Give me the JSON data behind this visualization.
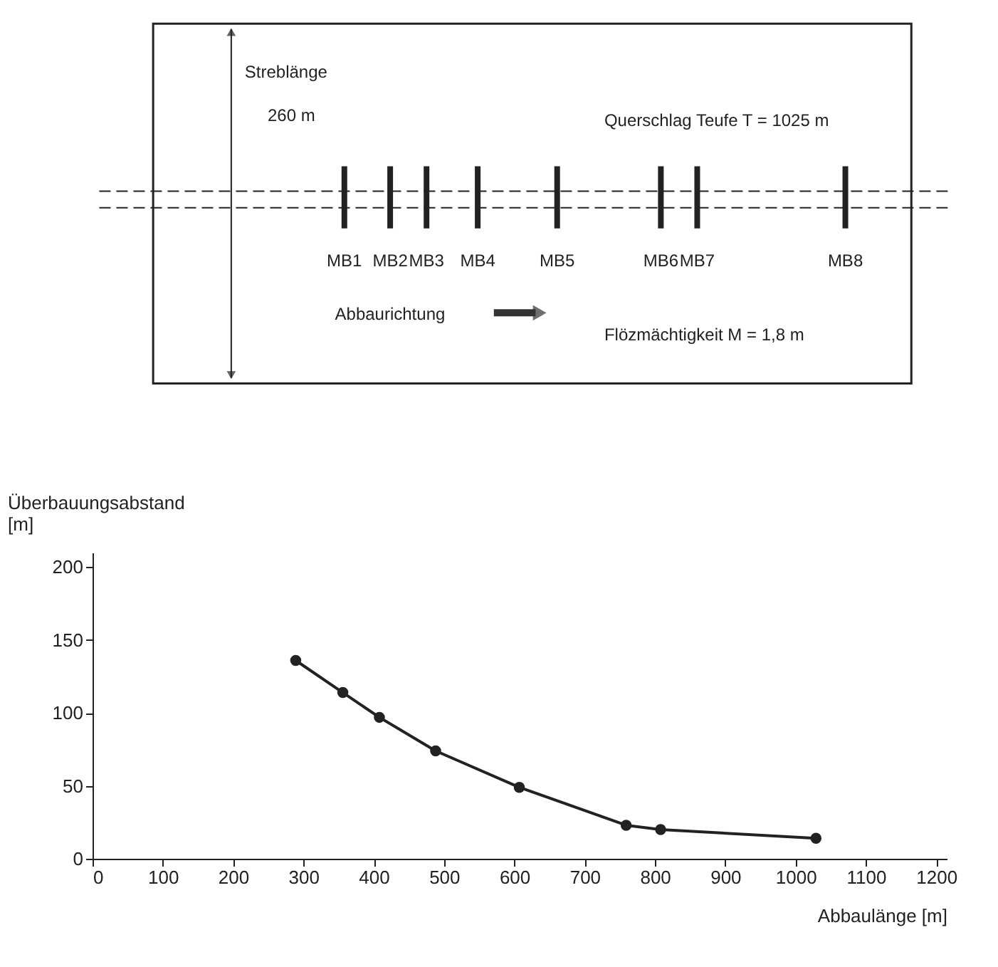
{
  "chart_data": [
    {
      "type": "other",
      "annotations": [
        "Streblänge",
        "260 m",
        "Querschlag Teufe T = 1025 m",
        "MB1",
        "MB2",
        "MB3",
        "MB4",
        "MB5",
        "MB6",
        "MB7",
        "MB8",
        "Abbaurichtung",
        "Flözmächtigkeit M = 1,8 m"
      ]
    },
    {
      "type": "line",
      "xlabel": "Abbaulänge [m]",
      "ylabel": "Überbauungsabstand\n[m]",
      "x": [
        289,
        356,
        408,
        488,
        607,
        759,
        808,
        1029
      ],
      "series": [
        {
          "color": "#222222",
          "values": [
            136,
            114,
            97,
            74,
            49,
            23,
            20,
            14
          ]
        }
      ],
      "marker": "circle",
      "line_style": "solid",
      "grid": false,
      "xlim": [
        0,
        1215
      ],
      "ylim": [
        0,
        210
      ],
      "xticks": [
        0,
        100,
        200,
        300,
        400,
        500,
        600,
        700,
        800,
        900,
        1000,
        1100,
        1200
      ],
      "yticks": [
        0,
        50,
        100,
        150,
        200
      ]
    }
  ]
}
